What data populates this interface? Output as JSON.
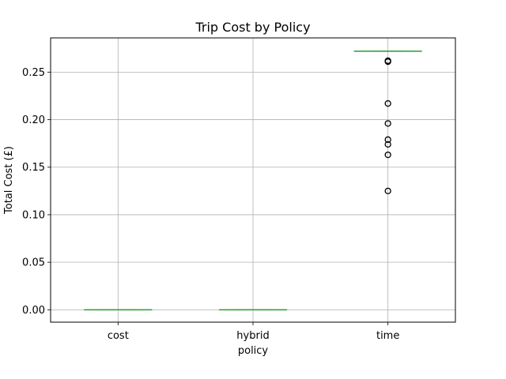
{
  "chart_data": {
    "type": "box",
    "title": "Trip Cost by Policy",
    "xlabel": "policy",
    "ylabel": "Total Cost (£)",
    "categories": [
      "cost",
      "hybrid",
      "time"
    ],
    "ylim": [
      -0.013,
      0.286
    ],
    "yticks": [
      0.0,
      0.05,
      0.1,
      0.15,
      0.2,
      0.25
    ],
    "ytick_labels": [
      "0.00",
      "0.05",
      "0.10",
      "0.15",
      "0.20",
      "0.25"
    ],
    "grid": true,
    "boxes": [
      {
        "category": "cost",
        "whislo": 0.0,
        "q1": 0.0,
        "median": 0.0,
        "q3": 0.0,
        "whishi": 0.0,
        "fliers": []
      },
      {
        "category": "hybrid",
        "whislo": 0.0,
        "q1": 0.0,
        "median": 0.0,
        "q3": 0.0,
        "whishi": 0.0,
        "fliers": []
      },
      {
        "category": "time",
        "whislo": 0.272,
        "q1": 0.272,
        "median": 0.272,
        "q3": 0.272,
        "whishi": 0.272,
        "fliers": [
          0.262,
          0.261,
          0.217,
          0.196,
          0.179,
          0.174,
          0.163,
          0.125
        ]
      }
    ],
    "colors": {
      "median": "#2ca02c",
      "box": "#1f77b4",
      "grid": "#b0b0b0",
      "flier": "#000000"
    }
  }
}
